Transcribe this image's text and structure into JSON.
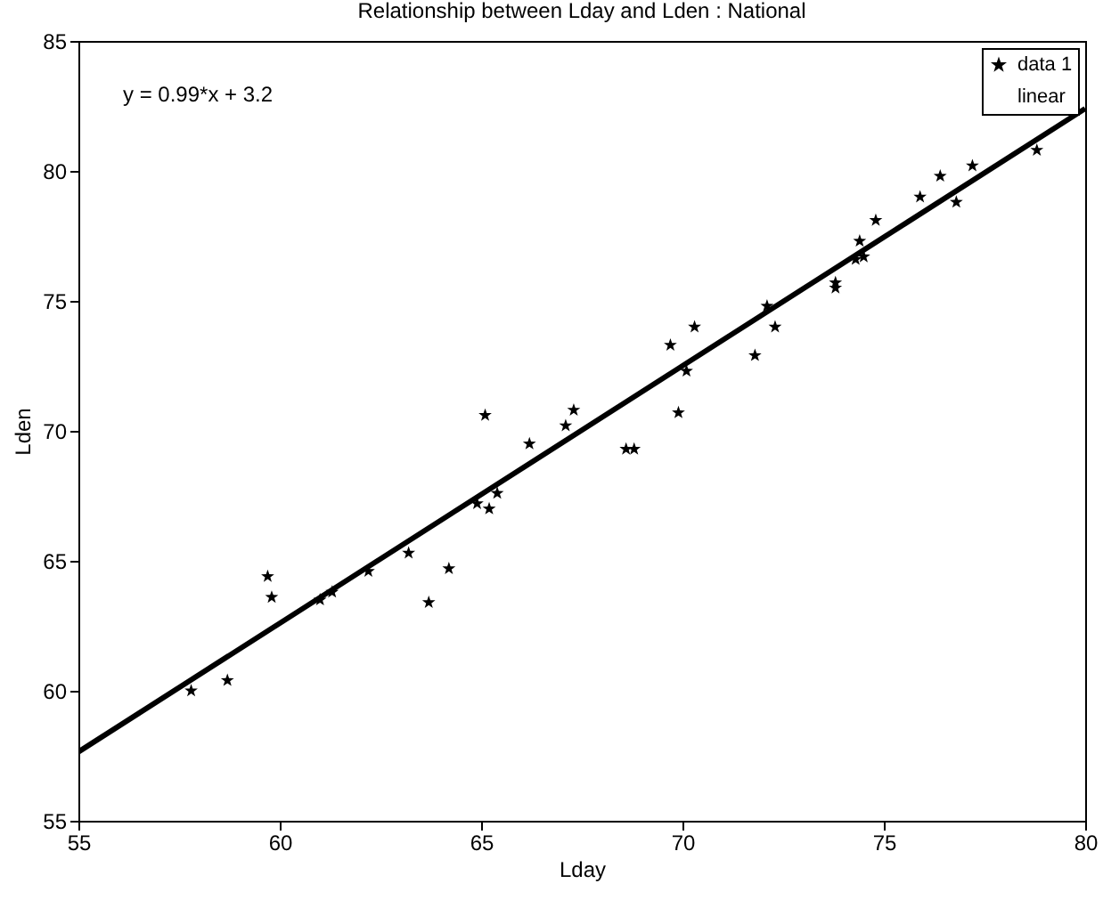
{
  "chart_data": {
    "type": "scatter",
    "title": "Relationship between Lday and Lden : National",
    "xlabel": "Lday",
    "ylabel": "Lden",
    "annotations": [
      "y = 0.99*x + 3.2"
    ],
    "series": [
      {
        "name": "data 1",
        "color": "#000000",
        "x": [
          57.8,
          58.7,
          59.7,
          59.8,
          61.0,
          61.3,
          62.2,
          63.2,
          63.7,
          64.2,
          64.9,
          65.1,
          65.2,
          65.4,
          66.2,
          67.1,
          67.3,
          68.6,
          68.8,
          69.7,
          69.9,
          70.1,
          70.3,
          71.8,
          72.1,
          72.3,
          73.8,
          73.8,
          74.3,
          74.4,
          74.5,
          74.8,
          75.9,
          76.4,
          76.8,
          77.2,
          78.8
        ],
        "values": [
          60.0,
          60.4,
          64.4,
          63.6,
          63.5,
          63.8,
          64.6,
          65.3,
          63.4,
          64.7,
          67.2,
          70.6,
          67.0,
          67.6,
          69.5,
          70.2,
          70.8,
          69.3,
          69.3,
          73.3,
          70.7,
          72.3,
          74.0,
          72.9,
          74.8,
          74.0,
          75.5,
          75.7,
          76.6,
          77.3,
          76.7,
          78.1,
          79.0,
          79.8,
          78.8,
          80.2,
          80.8
        ]
      },
      {
        "name": "linear",
        "type": "line",
        "marker": "none",
        "color": "#000000",
        "x": [
          55,
          80
        ],
        "values": [
          57.65,
          82.4
        ]
      }
    ],
    "xlim": [
      55,
      80
    ],
    "ylim": [
      55,
      85
    ],
    "xticks": [
      55,
      60,
      65,
      70,
      75,
      80
    ],
    "yticks": [
      55,
      60,
      65,
      70,
      75,
      80,
      85
    ],
    "grid": false,
    "legend": "top right",
    "marker": "star",
    "line_style": "solid"
  }
}
